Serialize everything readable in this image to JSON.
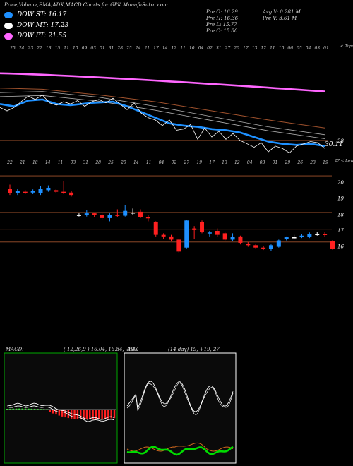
{
  "header": {
    "title": "Price,Volume,EMA,ADX,MACD Charts for GPK MunafaSutra.com"
  },
  "legend": [
    {
      "label": "DOW ST: 16.17",
      "color": "#1e90ff"
    },
    {
      "label": "DOW MT: 17.23",
      "color": "#ffffff"
    },
    {
      "label": "DOW PT: 21.55",
      "color": "#ff66ff"
    }
  ],
  "ohlc": {
    "open": "Pre  O: 16.29",
    "high": "Pre  H: 16.36",
    "low": "Pre  L: 15.77",
    "close": "Pre  C: 15.80",
    "avgvol": "Avg V: 0.281 M",
    "vol": "Pre  V: 3.61 M"
  },
  "chart_data": [
    {
      "type": "line",
      "title": "",
      "x_ticks": [
        "25",
        "24",
        "23",
        "22",
        "18",
        "15",
        "11",
        "10",
        "09",
        "03",
        "01",
        "31",
        "28",
        "25",
        "24",
        "21",
        "17",
        "14",
        "12",
        "11",
        "10",
        "04",
        "02",
        "31",
        "27",
        "20",
        "17",
        "13",
        "12",
        "11",
        "10",
        "06",
        "05",
        "04",
        "03",
        "01"
      ],
      "top_right_label": "< Topo",
      "level_labels": [
        {
          "value": 28,
          "label": "28"
        },
        {
          "value": 30.11,
          "label": "30.11"
        }
      ],
      "colors": {
        "ema_short": "#1e90ff",
        "ema_long": "#ff66ff",
        "price": "#ffffff",
        "ema_mid": "#b0b0b0",
        "ema_brown": "#a0522d"
      },
      "series": [],
      "ylim": [
        27,
        36
      ],
      "estimated": true
    },
    {
      "type": "bar",
      "subtype": "candlestick",
      "title": "",
      "x_ticks": [
        "22",
        "21",
        "18",
        "14",
        "11",
        "03",
        "31",
        "28",
        "25",
        "20",
        "14",
        "11",
        "04",
        "02",
        "27",
        "19",
        "17",
        "13",
        "12",
        "04",
        "03",
        "01",
        "29",
        "26",
        "23",
        "19"
      ],
      "top_right_label": "27 < Lowest",
      "y_ticks": [
        20,
        19,
        18,
        17,
        16
      ],
      "ylim": [
        15.4,
        20.8
      ],
      "candles": [
        {
          "o": 19.6,
          "c": 19.3,
          "h": 19.85,
          "l": 19.2
        },
        {
          "o": 19.3,
          "c": 19.45,
          "h": 19.6,
          "l": 19.2
        },
        {
          "o": 19.4,
          "c": 19.35,
          "h": 19.5,
          "l": 19.25
        },
        {
          "o": 19.35,
          "c": 19.45,
          "h": 19.55,
          "l": 19.25
        },
        {
          "o": 19.3,
          "c": 19.6,
          "h": 19.75,
          "l": 19.2
        },
        {
          "o": 19.5,
          "c": 19.65,
          "h": 19.8,
          "l": 19.4
        },
        {
          "o": 19.5,
          "c": 19.4,
          "h": 19.55,
          "l": 19.3
        },
        {
          "o": 19.4,
          "c": 19.35,
          "h": 20.05,
          "l": 19.25
        },
        {
          "o": 19.35,
          "c": 19.2,
          "h": 19.45,
          "l": 19.1
        },
        {
          "o": 17.95,
          "c": 17.95,
          "h": 18.05,
          "l": 17.85
        },
        {
          "o": 17.95,
          "c": 18.05,
          "h": 18.25,
          "l": 17.85
        },
        {
          "o": 18.05,
          "c": 17.95,
          "h": 18.1,
          "l": 17.8
        },
        {
          "o": 17.95,
          "c": 17.75,
          "h": 18.05,
          "l": 17.65
        },
        {
          "o": 17.75,
          "c": 17.95,
          "h": 18.05,
          "l": 17.55
        },
        {
          "o": 17.95,
          "c": 17.9,
          "h": 18.3,
          "l": 17.8
        },
        {
          "o": 17.9,
          "c": 18.2,
          "h": 18.55,
          "l": 17.85
        },
        {
          "o": 18.1,
          "c": 18.1,
          "h": 18.35,
          "l": 17.95
        },
        {
          "o": 18.15,
          "c": 17.8,
          "h": 18.3,
          "l": 17.75
        },
        {
          "o": 17.8,
          "c": 17.75,
          "h": 17.95,
          "l": 17.55
        },
        {
          "o": 17.5,
          "c": 16.7,
          "h": 17.55,
          "l": 16.6
        },
        {
          "o": 16.7,
          "c": 16.6,
          "h": 16.8,
          "l": 16.45
        },
        {
          "o": 16.6,
          "c": 16.4,
          "h": 16.7,
          "l": 16.3
        },
        {
          "o": 16.4,
          "c": 15.65,
          "h": 16.45,
          "l": 15.55
        },
        {
          "o": 15.9,
          "c": 17.6,
          "h": 17.65,
          "l": 15.85
        },
        {
          "o": 17.1,
          "c": 17.0,
          "h": 17.25,
          "l": 16.45
        },
        {
          "o": 17.5,
          "c": 16.9,
          "h": 17.6,
          "l": 16.8
        },
        {
          "o": 16.8,
          "c": 16.85,
          "h": 16.95,
          "l": 16.6
        },
        {
          "o": 16.95,
          "c": 16.7,
          "h": 17.1,
          "l": 16.55
        },
        {
          "o": 16.8,
          "c": 16.4,
          "h": 16.85,
          "l": 16.35
        },
        {
          "o": 16.4,
          "c": 16.55,
          "h": 16.8,
          "l": 16.3
        },
        {
          "o": 16.6,
          "c": 16.2,
          "h": 16.65,
          "l": 16.1
        },
        {
          "o": 16.15,
          "c": 16.05,
          "h": 16.25,
          "l": 15.95
        },
        {
          "o": 16.05,
          "c": 15.9,
          "h": 16.15,
          "l": 15.85
        },
        {
          "o": 15.9,
          "c": 15.85,
          "h": 16.0,
          "l": 15.75
        },
        {
          "o": 15.8,
          "c": 16.05,
          "h": 16.1,
          "l": 15.7
        },
        {
          "o": 15.95,
          "c": 16.35,
          "h": 16.4,
          "l": 15.9
        },
        {
          "o": 16.45,
          "c": 16.55,
          "h": 16.6,
          "l": 16.35
        },
        {
          "o": 16.55,
          "c": 16.55,
          "h": 16.7,
          "l": 16.45
        },
        {
          "o": 16.55,
          "c": 16.65,
          "h": 16.75,
          "l": 16.5
        },
        {
          "o": 16.55,
          "c": 16.75,
          "h": 16.85,
          "l": 16.5
        },
        {
          "o": 16.75,
          "c": 16.75,
          "h": 16.9,
          "l": 16.65
        },
        {
          "o": 16.75,
          "c": 16.7,
          "h": 16.9,
          "l": 16.55
        },
        {
          "o": 16.29,
          "c": 15.8,
          "h": 16.36,
          "l": 15.77
        }
      ],
      "hlines": [
        20.4,
        18.1,
        17.05,
        16.25
      ],
      "colors": {
        "up": "#1e90ff",
        "down": "#ff2020",
        "flat": "#ffffff",
        "hline": "#a0522d"
      },
      "estimated": true
    },
    {
      "type": "bar",
      "title": "MACD",
      "params": "( 12,26,9 ) 16.04,  16.84,  -0.8",
      "colors": {
        "hist": "#ff2020",
        "signal": "#ffffff",
        "zero": "#ffffff",
        "green": "#00cc00"
      },
      "estimated": true
    },
    {
      "type": "line",
      "title": "ADX",
      "params": "(14 day) 19,  +19,  27",
      "colors": {
        "adx": "#ffffff",
        "plus": "#00dd00",
        "minus": "#d2691e"
      },
      "estimated": true
    }
  ]
}
